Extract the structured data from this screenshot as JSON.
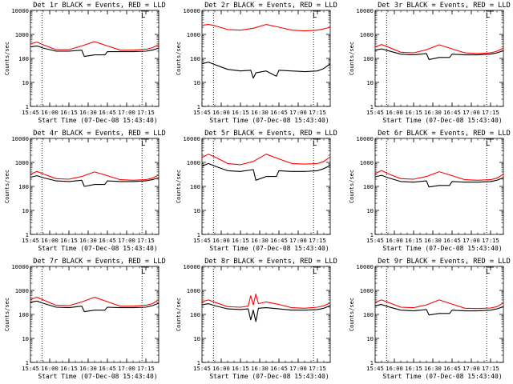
{
  "chart_data": [
    {
      "type": "line",
      "title": "Det 1r BLACK = Events, RED = LLD",
      "ylabel": "Counts/sec",
      "xlabel": "Start Time (07-Dec-08 15:43:40)",
      "yscale": "log",
      "ylim": [
        1,
        10000
      ],
      "xlim_minutes": [
        0,
        100
      ],
      "x_ticks": [
        "15:45",
        "16:00",
        "16:15",
        "16:30",
        "16:45",
        "17:00",
        "17:15"
      ],
      "y_ticks": [
        "1",
        "10",
        "100",
        "1000",
        "10000"
      ],
      "vertical_marker_times": [
        "15:54",
        "17:12"
      ],
      "corner_label": "L",
      "series": [
        {
          "name": "LLD",
          "color": "#ff0000",
          "x": [
            0,
            5,
            10,
            20,
            30,
            40,
            50,
            60,
            70,
            80,
            90,
            95,
            100
          ],
          "values": [
            400,
            480,
            370,
            230,
            230,
            330,
            500,
            330,
            220,
            220,
            240,
            280,
            370
          ]
        },
        {
          "name": "Events",
          "color": "#000000",
          "x": [
            0,
            5,
            10,
            20,
            30,
            40,
            42,
            50,
            58,
            60,
            70,
            80,
            90,
            95,
            100
          ],
          "values": [
            300,
            330,
            270,
            200,
            200,
            220,
            120,
            140,
            140,
            190,
            190,
            190,
            200,
            220,
            270
          ]
        }
      ]
    },
    {
      "type": "line",
      "title": "Det 2r BLACK = Events, RED = LLD",
      "ylabel": "Counts/sec",
      "xlabel": "Start Time (07-Dec-08 15:43:40)",
      "yscale": "log",
      "ylim": [
        1,
        10000
      ],
      "xlim_minutes": [
        0,
        100
      ],
      "x_ticks": [
        "15:45",
        "16:00",
        "16:15",
        "16:30",
        "16:45",
        "17:00",
        "17:15"
      ],
      "y_ticks": [
        "1",
        "10",
        "100",
        "1000",
        "10000"
      ],
      "vertical_marker_times": [
        "15:54",
        "17:12"
      ],
      "corner_label": "L",
      "series": [
        {
          "name": "LLD",
          "color": "#ff0000",
          "x": [
            0,
            5,
            10,
            20,
            30,
            40,
            50,
            60,
            70,
            80,
            90,
            95,
            100
          ],
          "values": [
            2400,
            2600,
            2300,
            1600,
            1500,
            1800,
            2600,
            2000,
            1500,
            1400,
            1500,
            1700,
            2000
          ]
        },
        {
          "name": "Events",
          "color": "#000000",
          "x": [
            0,
            5,
            10,
            20,
            30,
            38,
            40,
            42,
            50,
            58,
            60,
            70,
            80,
            90,
            95,
            100
          ],
          "values": [
            60,
            70,
            55,
            35,
            30,
            32,
            15,
            25,
            30,
            18,
            32,
            30,
            28,
            30,
            38,
            60
          ]
        }
      ]
    },
    {
      "type": "line",
      "title": "Det 3r BLACK = Events, RED = LLD",
      "ylabel": "Counts/sec",
      "xlabel": "Start Time (07-Dec-08 15:43:40)",
      "yscale": "log",
      "ylim": [
        1,
        10000
      ],
      "xlim_minutes": [
        0,
        100
      ],
      "x_ticks": [
        "15:45",
        "16:00",
        "16:15",
        "16:30",
        "16:45",
        "17:00",
        "17:15"
      ],
      "y_ticks": [
        "1",
        "10",
        "100",
        "1000",
        "10000"
      ],
      "vertical_marker_times": [
        "15:54",
        "17:12"
      ],
      "corner_label": "L",
      "series": [
        {
          "name": "LLD",
          "color": "#ff0000",
          "x": [
            0,
            5,
            10,
            20,
            30,
            40,
            50,
            60,
            70,
            80,
            90,
            95,
            100
          ],
          "values": [
            300,
            380,
            300,
            180,
            170,
            230,
            370,
            250,
            170,
            160,
            170,
            200,
            270
          ]
        },
        {
          "name": "Events",
          "color": "#000000",
          "x": [
            0,
            5,
            10,
            20,
            30,
            40,
            42,
            50,
            58,
            60,
            70,
            80,
            90,
            95,
            100
          ],
          "values": [
            220,
            250,
            210,
            150,
            140,
            160,
            90,
            110,
            110,
            150,
            140,
            140,
            150,
            170,
            210
          ]
        }
      ]
    },
    {
      "type": "line",
      "title": "Det 4r BLACK = Events, RED = LLD",
      "ylabel": "Counts/sec",
      "xlabel": "Start Time (07-Dec-08 15:43:40)",
      "yscale": "log",
      "ylim": [
        1,
        10000
      ],
      "xlim_minutes": [
        0,
        100
      ],
      "x_ticks": [
        "15:45",
        "16:00",
        "16:15",
        "16:30",
        "16:45",
        "17:00",
        "17:15"
      ],
      "y_ticks": [
        "1",
        "10",
        "100",
        "1000",
        "10000"
      ],
      "vertical_marker_times": [
        "15:54",
        "17:12"
      ],
      "corner_label": "L",
      "series": [
        {
          "name": "LLD",
          "color": "#ff0000",
          "x": [
            0,
            5,
            10,
            20,
            30,
            40,
            50,
            60,
            70,
            80,
            90,
            95,
            100
          ],
          "values": [
            320,
            420,
            330,
            210,
            200,
            260,
            400,
            280,
            190,
            180,
            190,
            220,
            300
          ]
        },
        {
          "name": "Events",
          "color": "#000000",
          "x": [
            0,
            5,
            10,
            20,
            30,
            40,
            42,
            50,
            58,
            60,
            70,
            80,
            90,
            95,
            100
          ],
          "values": [
            240,
            280,
            230,
            170,
            160,
            180,
            100,
            120,
            120,
            170,
            160,
            160,
            170,
            190,
            230
          ]
        }
      ]
    },
    {
      "type": "line",
      "title": "Det 5r BLACK = Events, RED = LLD",
      "ylabel": "Counts/sec",
      "xlabel": "Start Time (07-Dec-08 15:43:40)",
      "yscale": "log",
      "ylim": [
        1,
        10000
      ],
      "xlim_minutes": [
        0,
        100
      ],
      "x_ticks": [
        "15:45",
        "16:00",
        "16:15",
        "16:30",
        "16:45",
        "17:00",
        "17:15"
      ],
      "y_ticks": [
        "1",
        "10",
        "100",
        "1000",
        "10000"
      ],
      "vertical_marker_times": [
        "15:54",
        "17:12"
      ],
      "corner_label": "L",
      "series": [
        {
          "name": "LLD",
          "color": "#ff0000",
          "x": [
            0,
            5,
            10,
            20,
            30,
            40,
            50,
            60,
            70,
            80,
            90,
            95,
            100
          ],
          "values": [
            1600,
            2200,
            1700,
            900,
            800,
            1100,
            2200,
            1400,
            900,
            850,
            900,
            1100,
            1700
          ]
        },
        {
          "name": "Events",
          "color": "#000000",
          "x": [
            0,
            5,
            10,
            20,
            30,
            40,
            42,
            50,
            58,
            60,
            70,
            80,
            90,
            95,
            100
          ],
          "values": [
            700,
            900,
            700,
            450,
            420,
            500,
            180,
            260,
            260,
            450,
            420,
            420,
            450,
            550,
            750
          ]
        }
      ]
    },
    {
      "type": "line",
      "title": "Det 6r BLACK = Events, RED = LLD",
      "ylabel": "Counts/sec",
      "xlabel": "Start Time (07-Dec-08 15:43:40)",
      "yscale": "log",
      "ylim": [
        1,
        10000
      ],
      "xlim_minutes": [
        0,
        100
      ],
      "x_ticks": [
        "15:45",
        "16:00",
        "16:15",
        "16:30",
        "16:45",
        "17:00",
        "17:15"
      ],
      "y_ticks": [
        "1",
        "10",
        "100",
        "1000",
        "10000"
      ],
      "vertical_marker_times": [
        "15:54",
        "17:12"
      ],
      "corner_label": "L",
      "series": [
        {
          "name": "LLD",
          "color": "#ff0000",
          "x": [
            0,
            5,
            10,
            20,
            30,
            40,
            50,
            60,
            70,
            80,
            90,
            95,
            100
          ],
          "values": [
            340,
            460,
            340,
            210,
            200,
            260,
            410,
            280,
            190,
            180,
            190,
            220,
            320
          ]
        },
        {
          "name": "Events",
          "color": "#000000",
          "x": [
            0,
            5,
            10,
            20,
            30,
            40,
            42,
            50,
            58,
            60,
            70,
            80,
            90,
            95,
            100
          ],
          "values": [
            250,
            290,
            230,
            160,
            150,
            170,
            95,
            110,
            110,
            160,
            150,
            150,
            160,
            180,
            230
          ]
        }
      ]
    },
    {
      "type": "line",
      "title": "Det 7r BLACK = Events, RED = LLD",
      "ylabel": "Counts/sec",
      "xlabel": "Start Time (07-Dec-08 15:43:40)",
      "yscale": "log",
      "ylim": [
        1,
        10000
      ],
      "xlim_minutes": [
        0,
        100
      ],
      "x_ticks": [
        "15:45",
        "16:00",
        "16:15",
        "16:30",
        "16:45",
        "17:00",
        "17:15"
      ],
      "y_ticks": [
        "1",
        "10",
        "100",
        "1000",
        "10000"
      ],
      "vertical_marker_times": [
        "15:54",
        "17:12"
      ],
      "corner_label": "L",
      "series": [
        {
          "name": "LLD",
          "color": "#ff0000",
          "x": [
            0,
            5,
            10,
            20,
            30,
            40,
            50,
            60,
            70,
            80,
            90,
            95,
            100
          ],
          "values": [
            420,
            520,
            400,
            240,
            230,
            330,
            520,
            340,
            220,
            220,
            240,
            280,
            400
          ]
        },
        {
          "name": "Events",
          "color": "#000000",
          "x": [
            0,
            5,
            10,
            20,
            30,
            40,
            42,
            50,
            58,
            60,
            70,
            80,
            90,
            95,
            100
          ],
          "values": [
            320,
            360,
            290,
            200,
            190,
            220,
            130,
            150,
            150,
            200,
            190,
            190,
            200,
            230,
            290
          ]
        }
      ]
    },
    {
      "type": "line",
      "title": "Det 8r BLACK = Events, RED = LLD",
      "ylabel": "Counts/sec",
      "xlabel": "Start Time (07-Dec-08 15:43:40)",
      "yscale": "log",
      "ylim": [
        1,
        10000
      ],
      "xlim_minutes": [
        0,
        100
      ],
      "x_ticks": [
        "15:45",
        "16:00",
        "16:15",
        "16:30",
        "16:45",
        "17:00",
        "17:15"
      ],
      "y_ticks": [
        "1",
        "10",
        "100",
        "1000",
        "10000"
      ],
      "vertical_marker_times": [
        "15:54",
        "17:12"
      ],
      "corner_label": "L",
      "series": [
        {
          "name": "LLD",
          "color": "#ff0000",
          "x": [
            0,
            5,
            10,
            20,
            30,
            36,
            38,
            40,
            42,
            44,
            50,
            60,
            70,
            80,
            90,
            95,
            100
          ],
          "values": [
            340,
            400,
            320,
            210,
            200,
            220,
            600,
            250,
            700,
            280,
            330,
            260,
            190,
            180,
            200,
            230,
            300
          ]
        },
        {
          "name": "Events",
          "color": "#000000",
          "x": [
            0,
            5,
            10,
            20,
            30,
            36,
            38,
            40,
            42,
            44,
            50,
            60,
            70,
            80,
            90,
            95,
            100
          ],
          "values": [
            250,
            280,
            230,
            170,
            160,
            170,
            60,
            150,
            50,
            180,
            190,
            170,
            150,
            150,
            160,
            180,
            230
          ]
        }
      ]
    },
    {
      "type": "line",
      "title": "Det 9r BLACK = Events, RED = LLD",
      "ylabel": "Counts/sec",
      "xlabel": "Start Time (07-Dec-08 15:43:40)",
      "yscale": "log",
      "ylim": [
        1,
        10000
      ],
      "xlim_minutes": [
        0,
        100
      ],
      "x_ticks": [
        "15:45",
        "16:00",
        "16:15",
        "16:30",
        "16:45",
        "17:00",
        "17:15"
      ],
      "y_ticks": [
        "1",
        "10",
        "100",
        "1000",
        "10000"
      ],
      "vertical_marker_times": [
        "15:54",
        "17:12"
      ],
      "corner_label": "L",
      "series": [
        {
          "name": "LLD",
          "color": "#ff0000",
          "x": [
            0,
            5,
            10,
            20,
            30,
            40,
            50,
            60,
            70,
            80,
            90,
            95,
            100
          ],
          "values": [
            320,
            400,
            320,
            200,
            190,
            250,
            400,
            270,
            180,
            175,
            185,
            210,
            300
          ]
        },
        {
          "name": "Events",
          "color": "#000000",
          "x": [
            0,
            5,
            10,
            20,
            30,
            40,
            42,
            50,
            58,
            60,
            70,
            80,
            90,
            95,
            100
          ],
          "values": [
            230,
            260,
            210,
            150,
            140,
            160,
            95,
            110,
            110,
            150,
            140,
            140,
            150,
            170,
            210
          ]
        }
      ]
    }
  ]
}
